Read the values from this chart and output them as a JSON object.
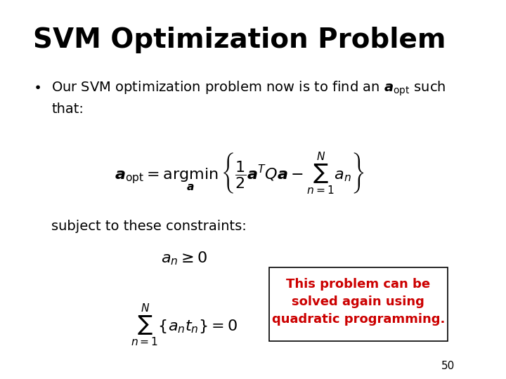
{
  "title": "SVM Optimization Problem",
  "title_fontsize": 28,
  "title_color": "#000000",
  "background_color": "#ffffff",
  "bullet_text": "Our SVM optimization problem now is to find an $\\boldsymbol{a}_{\\mathrm{opt}}$ such\nthat:",
  "bullet_fontsize": 14,
  "main_equation": "$\\boldsymbol{a}_{\\mathrm{opt}} = \\underset{\\boldsymbol{a}}{\\mathrm{argmin}} \\left\\{ \\dfrac{1}{2} \\boldsymbol{a}^T Q \\boldsymbol{a} - \\sum_{n=1}^{N} a_n \\right\\}$",
  "eq_fontsize": 16,
  "subject_text": "subject to these constraints:",
  "subject_fontsize": 14,
  "constraint1": "$a_n \\geq 0$",
  "constraint1_fontsize": 16,
  "constraint2": "$\\sum_{n=1}^{N} \\left\\{ a_n t_n \\right\\} = 0$",
  "constraint2_fontsize": 16,
  "callout_text": "This problem can be\nsolved again using\nquadratic programming.",
  "callout_fontsize": 13,
  "callout_color": "#cc0000",
  "callout_box_color": "#000000",
  "callout_bg": "#ffffff",
  "page_number": "50",
  "page_number_fontsize": 11
}
